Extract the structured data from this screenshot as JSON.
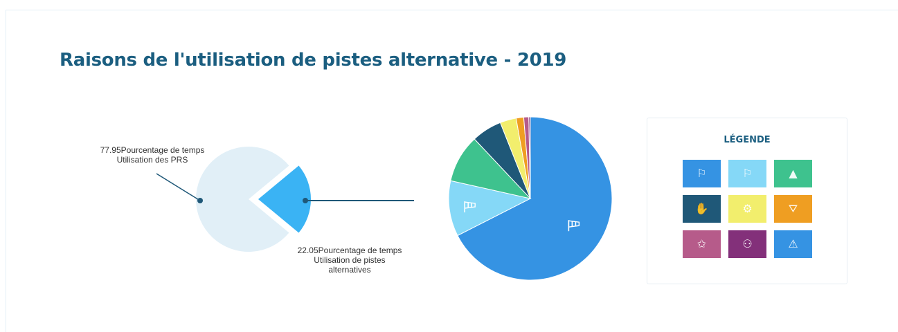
{
  "title": "Raisons de l'utilisation de pistes alternative - 2019",
  "chart_data": [
    {
      "type": "pie",
      "slices": [
        {
          "value": 77.95,
          "label": [
            "77.95Pourcentage de temps",
            "Utilisation des PRS"
          ],
          "color": "#e1eff7"
        },
        {
          "value": 22.05,
          "label": [
            "22.05Pourcentage de temps",
            "Utilisation de pistes",
            "alternatives"
          ],
          "color": "#3ab3f4"
        }
      ]
    },
    {
      "type": "pie",
      "slices": [
        {
          "value": 67.5,
          "color": "#3593e3",
          "icon": "windsock-icon"
        },
        {
          "value": 11.0,
          "color": "#85d8f7",
          "icon": "windsock-icon"
        },
        {
          "value": 9.5,
          "color": "#3ec28e",
          "icon": ""
        },
        {
          "value": 6.0,
          "color": "#1f5878",
          "icon": ""
        },
        {
          "value": 3.2,
          "color": "#f2ee6d",
          "icon": ""
        },
        {
          "value": 1.5,
          "color": "#ef9e22",
          "icon": ""
        },
        {
          "value": 1.0,
          "color": "#b65b8a",
          "icon": ""
        },
        {
          "value": 0.3,
          "color": "#83307a",
          "icon": ""
        }
      ]
    }
  ],
  "legend": {
    "title": "LÉGENDE",
    "items": [
      {
        "color": "#3593e3",
        "icon": "windsock-icon",
        "glyph": "⚐"
      },
      {
        "color": "#85d8f7",
        "icon": "windsock-light-icon",
        "glyph": "⚐"
      },
      {
        "color": "#3ec28e",
        "icon": "traffic-cone-icon",
        "glyph": "▲"
      },
      {
        "color": "#1f5878",
        "icon": "hand-icon",
        "glyph": "✋"
      },
      {
        "color": "#f2ee6d",
        "icon": "gear-icon",
        "glyph": "⚙"
      },
      {
        "color": "#ef9e22",
        "icon": "barrier-icon",
        "glyph": "⛛"
      },
      {
        "color": "#b65b8a",
        "icon": "badge-icon",
        "glyph": "✩"
      },
      {
        "color": "#83307a",
        "icon": "people-icon",
        "glyph": "⚇"
      },
      {
        "color": "#3593e3",
        "icon": "warning-icon",
        "glyph": "⚠"
      }
    ]
  }
}
